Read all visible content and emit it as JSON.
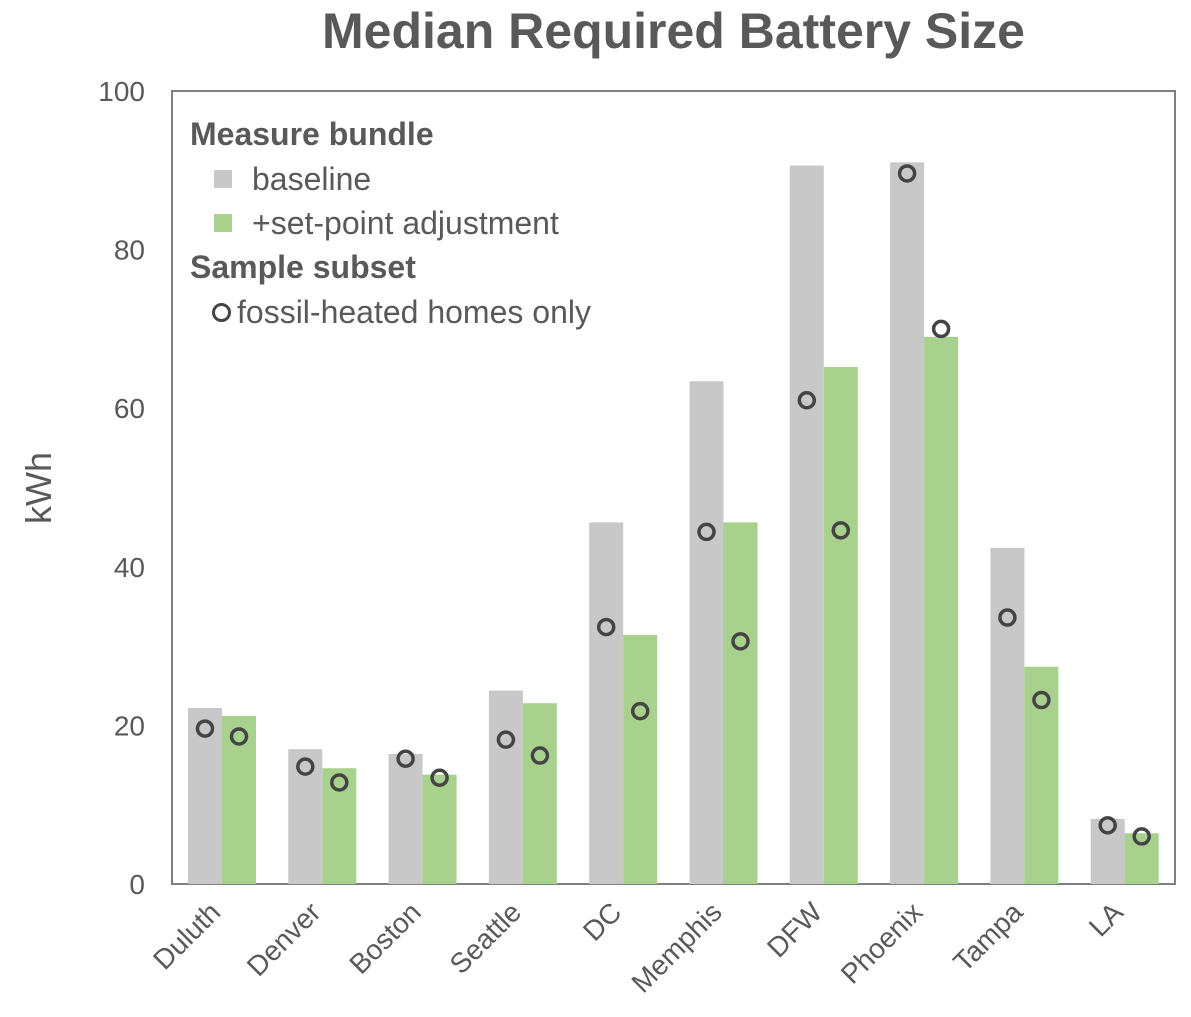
{
  "chart_data": {
    "type": "bar",
    "title": "Median Required Battery Size",
    "ylabel": "kWh",
    "xlabel": "",
    "ylim": [
      0,
      100
    ],
    "yticks": [
      0,
      20,
      40,
      60,
      80,
      100
    ],
    "grid": false,
    "legend_position": "top-left",
    "categories": [
      "Duluth",
      "Denver",
      "Boston",
      "Seattle",
      "DC",
      "Memphis",
      "DFW",
      "Phoenix",
      "Tampa",
      "LA"
    ],
    "legend": {
      "group1_heading": "Measure bundle",
      "group2_heading": "Sample subset"
    },
    "series": [
      {
        "name": "baseline",
        "kind": "bar",
        "color": "#c8c8c8",
        "values": [
          22.2,
          17.0,
          16.4,
          24.4,
          45.6,
          63.4,
          90.6,
          91.0,
          42.4,
          8.2
        ]
      },
      {
        "name": "+set-point adjustment",
        "kind": "bar",
        "color": "#a9d18e",
        "values": [
          21.2,
          14.6,
          13.8,
          22.8,
          31.4,
          45.6,
          65.2,
          69.0,
          27.4,
          6.4
        ]
      },
      {
        "name": "fossil-heated homes only",
        "kind": "marker",
        "color": "#444444",
        "baseline_values": [
          19.6,
          14.8,
          15.8,
          18.2,
          32.4,
          44.4,
          61.0,
          89.6,
          33.6,
          7.4
        ],
        "setpoint_values": [
          18.6,
          12.8,
          13.4,
          16.2,
          21.8,
          30.6,
          44.6,
          70.0,
          23.2,
          6.0
        ]
      }
    ]
  }
}
